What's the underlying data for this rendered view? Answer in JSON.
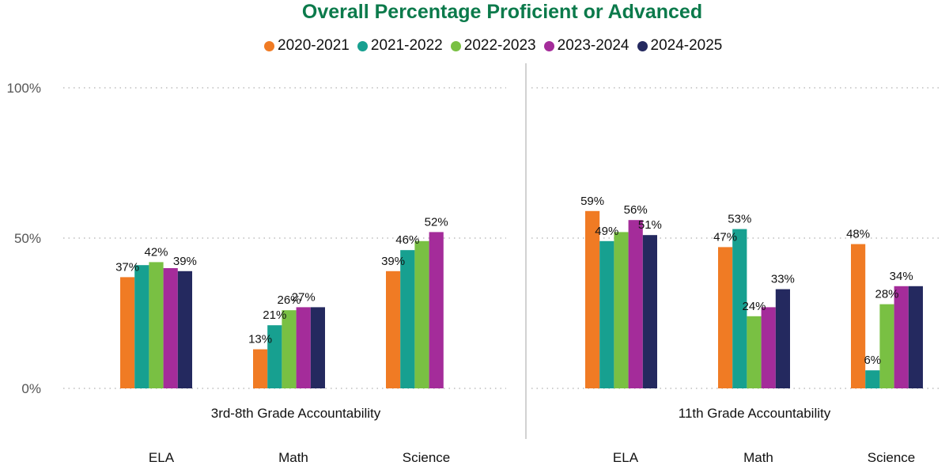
{
  "chart_data": {
    "type": "bar",
    "title": "Overall Percentage Proficient or Advanced",
    "ylim": [
      0,
      100
    ],
    "y_ticks": [
      "0%",
      "50%",
      "100%"
    ],
    "y_tick_values": [
      0,
      50,
      100
    ],
    "grid": true,
    "legend_position": "top-center",
    "series": [
      {
        "name": "2020-2021",
        "color": "#f07b24"
      },
      {
        "name": "2021-2022",
        "color": "#17a090"
      },
      {
        "name": "2022-2023",
        "color": "#79c043"
      },
      {
        "name": "2023-2024",
        "color": "#a42c9a"
      },
      {
        "name": "2024-2025",
        "color": "#24295f"
      }
    ],
    "panels": [
      {
        "name": "3rd-8th Grade Accountability",
        "categories": [
          "ELA",
          "Math",
          "Science"
        ],
        "values": [
          [
            37,
            41,
            42,
            40,
            39
          ],
          [
            13,
            21,
            26,
            27,
            27
          ],
          [
            39,
            46,
            49,
            52,
            null
          ]
        ],
        "labels": [
          [
            "37%",
            null,
            "42%",
            null,
            "39%"
          ],
          [
            "13%",
            "21%",
            "26%",
            "27%",
            null
          ],
          [
            "39%",
            "46%",
            null,
            "52%",
            null
          ]
        ]
      },
      {
        "name": "11th Grade Accountability",
        "categories": [
          "ELA",
          "Math",
          "Science"
        ],
        "values": [
          [
            59,
            49,
            52,
            56,
            51
          ],
          [
            47,
            53,
            24,
            27,
            33
          ],
          [
            48,
            6,
            28,
            34,
            34
          ]
        ],
        "labels": [
          [
            "59%",
            "49%",
            null,
            "56%",
            "51%"
          ],
          [
            "47%",
            "53%",
            "24%",
            null,
            "33%"
          ],
          [
            "48%",
            "6%",
            "28%",
            "34%",
            null
          ]
        ]
      }
    ]
  }
}
